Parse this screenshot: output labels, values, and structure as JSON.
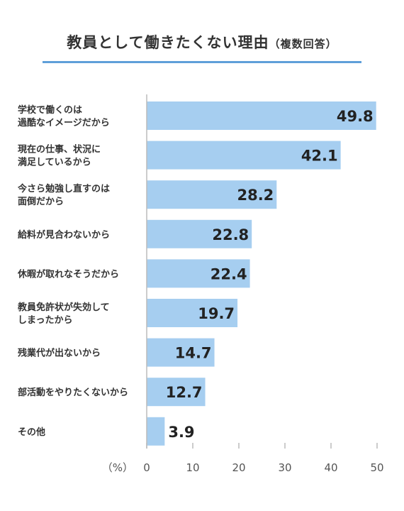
{
  "title": "教員として働きたくない理由",
  "subtitle": "（複数回答）",
  "unit_label": "（%）",
  "colors": {
    "bar": "#a6cef0",
    "title_line": "#5f9fd9",
    "axis": "#bbbbbb"
  },
  "chart_data": {
    "type": "bar",
    "orientation": "horizontal",
    "categories": [
      [
        "学校で働くのは",
        "過酷なイメージだから"
      ],
      [
        "現在の仕事、状況に",
        "満足しているから"
      ],
      [
        "今さら勉強し直すのは",
        "面倒だから"
      ],
      [
        "給料が見合わないから"
      ],
      [
        "休暇が取れなそうだから"
      ],
      [
        "教員免許状が失効して",
        "しまったから"
      ],
      [
        "残業代が出ないから"
      ],
      [
        "部活動をやりたくないから"
      ],
      [
        "その他"
      ]
    ],
    "values": [
      49.8,
      42.1,
      28.2,
      22.8,
      22.4,
      19.7,
      14.7,
      12.7,
      3.9
    ],
    "xticks": [
      0,
      10,
      20,
      30,
      40,
      50
    ],
    "xlim": [
      0,
      50
    ],
    "grid": false
  }
}
